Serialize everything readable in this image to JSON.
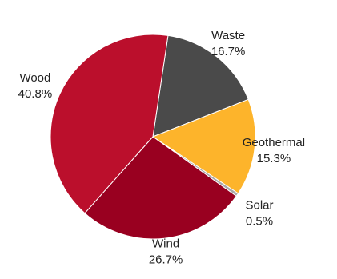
{
  "chart_data": {
    "type": "pie",
    "title": "",
    "slices": [
      {
        "name": "Waste",
        "value": 16.7,
        "label": "16.7%",
        "color": "#4a4a4a"
      },
      {
        "name": "Geothermal",
        "value": 15.3,
        "label": "15.3%",
        "color": "#fdb42b"
      },
      {
        "name": "Solar",
        "value": 0.5,
        "label": "0.5%",
        "color": "#a9a9a9"
      },
      {
        "name": "Wind",
        "value": 26.7,
        "label": "26.7%",
        "color": "#990020"
      },
      {
        "name": "Wood",
        "value": 40.8,
        "label": "40.8%",
        "color": "#bb0f2c"
      }
    ],
    "legend": "none",
    "label_placement": "outside"
  }
}
